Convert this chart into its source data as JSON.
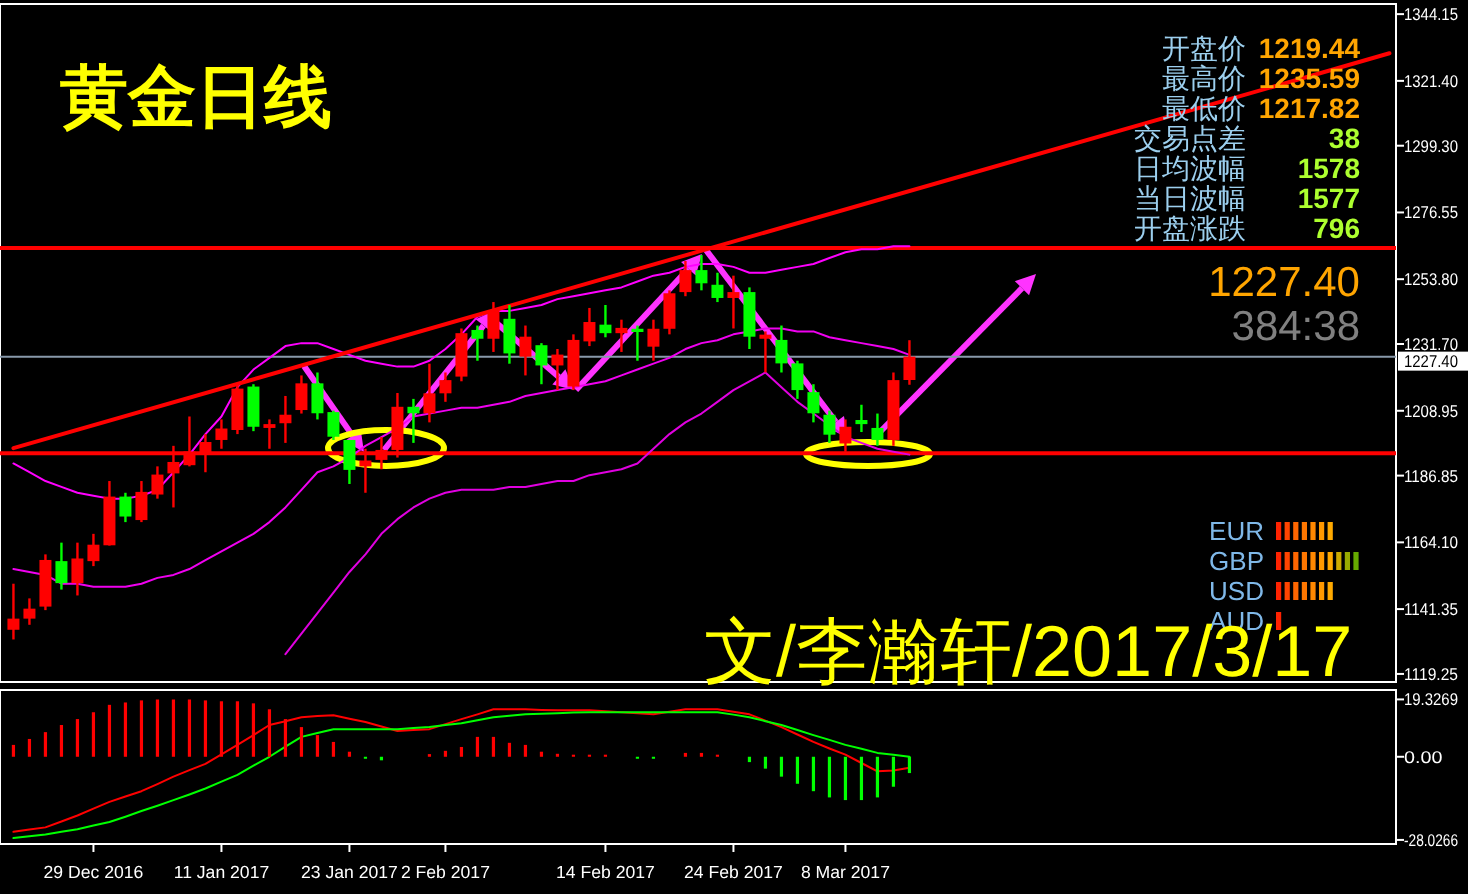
{
  "chart_data": [
    {
      "type": "candlestick",
      "title": "黄金日线",
      "tick_labels": "y",
      "categories": [
        null,
        null,
        null,
        null,
        null,
        null,
        null,
        null,
        null,
        null,
        null,
        null,
        null,
        null,
        null,
        null,
        null,
        null,
        null,
        null,
        null,
        null,
        null,
        null,
        null,
        null,
        null,
        null,
        null,
        null,
        null,
        null,
        null,
        null,
        null,
        null,
        null,
        null,
        null,
        null,
        null,
        null,
        null,
        null,
        null,
        null,
        null,
        null,
        null,
        null,
        null,
        null,
        null,
        null,
        null,
        null,
        null,
        null,
        null,
        null,
        null,
        null,
        null,
        null,
        null,
        null,
        null,
        null,
        null,
        null,
        null,
        null,
        null,
        null,
        null,
        null,
        null,
        null,
        null,
        null,
        null,
        null,
        null,
        null,
        null,
        null,
        null
      ],
      "ohlc": [
        [
          1134.3,
          1150,
          1131,
          1138.1
        ],
        [
          1138.1,
          1145,
          1136,
          1141.5
        ],
        [
          1142.2,
          1160,
          1141,
          1158.1
        ],
        [
          1157.7,
          1164,
          1148,
          1150.2
        ],
        [
          1150.2,
          1164,
          1146,
          1158.6
        ],
        [
          1157.7,
          1167,
          1156,
          1163.3
        ],
        [
          1163.1,
          1185,
          1163,
          1179.7
        ],
        [
          1179.7,
          1181,
          1171,
          1172.9
        ],
        [
          1171.7,
          1185,
          1171,
          1181.3
        ],
        [
          1180.4,
          1190,
          1179,
          1187.2
        ],
        [
          1187.6,
          1197,
          1176,
          1191.5
        ],
        [
          1190.4,
          1207,
          1190,
          1195.1
        ],
        [
          1194.5,
          1201,
          1188,
          1198.3
        ],
        [
          1199,
          1206,
          1196,
          1202.9
        ],
        [
          1202.4,
          1218,
          1201,
          1216.5
        ],
        [
          1217.2,
          1218,
          1202,
          1203.5
        ],
        [
          1203.1,
          1206,
          1196,
          1204.4
        ],
        [
          1204.7,
          1214,
          1198,
          1207.6
        ],
        [
          1209.2,
          1221,
          1208,
          1218.3
        ],
        [
          1218.3,
          1222,
          1206,
          1208.1
        ],
        [
          1208.5,
          1209,
          1199,
          1200.1
        ],
        [
          1199,
          1199,
          1184,
          1188.8
        ],
        [
          1190,
          1196,
          1181,
          1192
        ],
        [
          1192.2,
          1200,
          1189,
          1195.6
        ],
        [
          1195.6,
          1215,
          1193,
          1210.3
        ],
        [
          1210.3,
          1213,
          1198,
          1208.1
        ],
        [
          1208.1,
          1225,
          1205,
          1214.9
        ],
        [
          1214.9,
          1222,
          1212,
          1219.4
        ],
        [
          1220.6,
          1237,
          1219,
          1235.4
        ],
        [
          1236.5,
          1238,
          1226,
          1233.5
        ],
        [
          1233.5,
          1246,
          1229,
          1243.3
        ],
        [
          1240.3,
          1245,
          1225,
          1228.5
        ],
        [
          1227.4,
          1238,
          1221,
          1234.2
        ],
        [
          1231.3,
          1232,
          1218,
          1224.4
        ],
        [
          1224.4,
          1230,
          1216,
          1228.1
        ],
        [
          1217.2,
          1235,
          1216,
          1233.1
        ],
        [
          1232.6,
          1244,
          1231,
          1239.2
        ],
        [
          1238.3,
          1245,
          1234,
          1235.4
        ],
        [
          1235.4,
          1240,
          1229,
          1237.2
        ],
        [
          1236.9,
          1238,
          1226,
          1235.8
        ],
        [
          1230.8,
          1240,
          1226,
          1236.9
        ],
        [
          1236.9,
          1250,
          1235,
          1249
        ],
        [
          1249.4,
          1260,
          1248,
          1256.9
        ],
        [
          1256.9,
          1262,
          1250,
          1252.4
        ],
        [
          1251.9,
          1256,
          1246,
          1247.4
        ],
        [
          1247.4,
          1255,
          1237,
          1249.4
        ],
        [
          1249.4,
          1251,
          1230,
          1234.2
        ],
        [
          1233.5,
          1236,
          1222,
          1234.9
        ],
        [
          1233.1,
          1238,
          1222,
          1225.1
        ],
        [
          1225.1,
          1226,
          1213,
          1216
        ],
        [
          1215.3,
          1218,
          1205,
          1208.1
        ],
        [
          1207.6,
          1209,
          1198,
          1200.8
        ],
        [
          1197.8,
          1206,
          1195,
          1203.5
        ],
        [
          1205.8,
          1211,
          1201.7,
          1204.4
        ],
        [
          1203.1,
          1208,
          1197,
          1199
        ],
        [
          1199,
          1222,
          1197,
          1219.4
        ],
        [
          1219.44,
          1233,
          1217.82,
          1227.4
        ],
        null,
        null,
        null,
        null,
        null,
        null,
        null,
        null,
        null,
        null,
        null,
        null,
        null,
        null,
        null,
        null,
        null,
        null,
        null,
        null,
        null,
        null,
        null,
        null,
        null,
        null,
        null,
        null,
        null,
        null
      ],
      "series": [
        {
          "type": "line",
          "color": "#ff00ff",
          "values": [
            1191,
            1188,
            1185,
            1183,
            1181,
            1180,
            1179,
            1179,
            1180,
            1182,
            1188,
            1194,
            1201,
            1207,
            1217,
            1223,
            1227,
            1231,
            1232,
            1232,
            1230,
            1228,
            1226,
            1225,
            1224,
            1224,
            1226,
            1230,
            1235,
            1241,
            1243,
            1243,
            1244,
            1245,
            1247,
            1248,
            1249,
            1250,
            1251,
            1253,
            1255,
            1256,
            1258,
            1259,
            1259,
            1258,
            1256,
            1256,
            1257,
            1258,
            1259,
            1261,
            1263,
            1264,
            1264,
            1265,
            1265,
            null,
            null,
            null,
            null,
            null,
            null,
            null,
            null,
            null,
            null,
            null,
            null,
            null,
            null,
            null,
            null,
            null,
            null,
            null,
            null,
            null,
            null,
            null,
            null,
            null,
            null,
            null,
            null,
            null,
            null
          ]
        },
        {
          "type": "line",
          "color": "#f000f0",
          "values": [
            1155,
            1154,
            1153,
            1150,
            1150,
            1149,
            1149,
            1149,
            1150,
            1152,
            1153,
            1155,
            1158,
            1161,
            1164,
            1167,
            1171,
            1176,
            1182,
            1188,
            1190,
            1193,
            1197,
            1200,
            1203,
            1207,
            1208,
            1209,
            1210,
            1210,
            1211,
            1212,
            1214,
            1215,
            1216,
            1217,
            1218,
            1219,
            1221,
            1223,
            1225,
            1227,
            1230,
            1232,
            1233,
            1235,
            1236,
            1237,
            1237,
            1236,
            1236,
            1234,
            1233,
            1232,
            1231,
            1230,
            1228,
            null,
            null,
            null,
            null,
            null,
            null,
            null,
            null,
            null,
            null,
            null,
            null,
            null,
            null,
            null,
            null,
            null,
            null,
            null,
            null,
            null,
            null,
            null,
            null,
            null,
            null,
            null,
            null,
            null,
            null
          ]
        },
        {
          "type": "line",
          "color": "#e000e0",
          "values": [
            null,
            null,
            null,
            null,
            null,
            null,
            null,
            null,
            null,
            null,
            null,
            null,
            null,
            null,
            null,
            null,
            null,
            1126,
            1133,
            1140,
            1147,
            1154,
            1160,
            1167,
            1172,
            1176,
            1179,
            1181,
            1182,
            1182,
            1182,
            1183,
            1183,
            1184,
            1185,
            1185,
            1187,
            1188,
            1189,
            1191,
            1196,
            1201,
            1205,
            1208,
            1212,
            1216,
            1219,
            1222,
            1217,
            1212,
            1208,
            1204,
            1200,
            1198,
            1196,
            1195,
            1194,
            null,
            null,
            null,
            null,
            null,
            null,
            null,
            null,
            null,
            null,
            null,
            null,
            null,
            null,
            null,
            null,
            null,
            null,
            null,
            null,
            null,
            null,
            null,
            null,
            null,
            null,
            null,
            null,
            null,
            null
          ]
        },
        {
          "type": "line",
          "color": "#ff0000",
          "values": [
            1196.2,
            null,
            null,
            null,
            null,
            null,
            null,
            null,
            null,
            null,
            null,
            null,
            null,
            null,
            null,
            null,
            null,
            null,
            null,
            null,
            null,
            null,
            null,
            null,
            null,
            null,
            null,
            null,
            null,
            null,
            null,
            null,
            null,
            null,
            null,
            null,
            null,
            null,
            null,
            null,
            null,
            null,
            null,
            null,
            null,
            null,
            null,
            null,
            null,
            null,
            null,
            null,
            null,
            null,
            null,
            null,
            null,
            null,
            null,
            null,
            null,
            null,
            null,
            null,
            null,
            null,
            null,
            null,
            null,
            null,
            null,
            null,
            null,
            null,
            null,
            null,
            null,
            null,
            null,
            null,
            null,
            null,
            null,
            null,
            null,
            null,
            1330.8
          ]
        }
      ],
      "ylim": [
        1116.5,
        1347.6
      ],
      "yticks": [
        {
          "value": 1344.15,
          "label": "1344.15"
        },
        {
          "value": 1321.4,
          "label": "1321.40"
        },
        {
          "value": 1299.3,
          "label": "1299.30"
        },
        {
          "value": 1276.55,
          "label": "1276.55"
        },
        {
          "value": 1253.8,
          "label": "1253.80"
        },
        {
          "value": 1231.7,
          "label": "1231.70"
        },
        {
          "value": 1208.95,
          "label": "1208.95"
        },
        {
          "value": 1186.85,
          "label": "1186.85"
        },
        {
          "value": 1164.1,
          "label": "1164.10"
        },
        {
          "value": 1141.35,
          "label": "1141.35"
        },
        {
          "value": 1119.25,
          "label": "1119.25"
        }
      ],
      "ref_lines": [
        {
          "axis": "y",
          "value": 1194.5,
          "color": "#ff0000"
        },
        {
          "axis": "y",
          "value": 1264.4,
          "color": "#ff0000"
        },
        {
          "axis": "y",
          "value": 1227.4,
          "label": "1227.40",
          "color": "#8899aa"
        }
      ],
      "annotations": [
        "开盘价",
        "1219.44",
        "最高价",
        "1235.59",
        "最低价",
        "1217.82",
        "交易点差",
        "38",
        "日均波幅",
        "1578",
        "当日波幅",
        "1577",
        "开盘涨跌",
        "796",
        "1227.40",
        "384:38",
        "EUR",
        "GBP",
        "USD",
        "AUD",
        "文/李瀚轩/2017/3/17"
      ]
    },
    {
      "type": "bar",
      "categories": [
        null,
        null,
        null,
        null,
        null,
        "29 Dec 2016",
        null,
        null,
        null,
        null,
        null,
        null,
        null,
        "11 Jan 2017",
        null,
        null,
        null,
        null,
        null,
        null,
        null,
        "23 Jan 2017",
        null,
        null,
        null,
        null,
        null,
        "2 Feb 2017",
        null,
        null,
        null,
        null,
        null,
        null,
        null,
        null,
        null,
        "14 Feb 2017",
        null,
        null,
        null,
        null,
        null,
        null,
        null,
        "24 Feb 2017",
        null,
        null,
        null,
        null,
        null,
        null,
        "8 Mar 2017",
        null,
        null,
        null,
        null,
        null,
        null,
        null,
        null,
        null,
        null,
        null,
        null,
        null,
        null,
        null,
        null,
        null,
        null,
        null,
        null,
        null,
        null,
        null,
        null,
        null,
        null,
        null,
        null,
        null,
        null,
        null,
        null,
        null,
        null
      ],
      "series": [
        {
          "type": "bar",
          "color": "#ff0000",
          "values": [
            4.0,
            6.0,
            8.3,
            10.7,
            12.7,
            15.0,
            17.5,
            18.3,
            19.0,
            19.3,
            19.3,
            19.3,
            19.0,
            18.7,
            18.7,
            18.0,
            16.0,
            12.7,
            10.0,
            7.3,
            5.0,
            1.7,
            null,
            null,
            null,
            null,
            0.9,
            2.0,
            3.3,
            6.7,
            6.7,
            4.7,
            4.0,
            1.7,
            1.0,
            0.7,
            0.7,
            0.7,
            null,
            null,
            null,
            null,
            1.3,
            1.3,
            0.7,
            null,
            null,
            null,
            null,
            null,
            null,
            null,
            null,
            null,
            null,
            null,
            null,
            null,
            null,
            null,
            null,
            null,
            null,
            null,
            null,
            null,
            null,
            null,
            null,
            null,
            null,
            null,
            null,
            null,
            null,
            null,
            null,
            null,
            null,
            null,
            null,
            null,
            null,
            null,
            null,
            null,
            null
          ]
        },
        {
          "type": "bar",
          "color": "#00ff00",
          "values": [
            null,
            null,
            null,
            null,
            null,
            null,
            null,
            null,
            null,
            null,
            null,
            null,
            null,
            null,
            null,
            null,
            null,
            null,
            null,
            null,
            null,
            null,
            -0.6,
            -1.2,
            null,
            null,
            null,
            null,
            null,
            null,
            null,
            null,
            null,
            null,
            null,
            null,
            null,
            null,
            null,
            -0.3,
            -0.3,
            null,
            null,
            null,
            null,
            null,
            -1.8,
            -4.0,
            -6.7,
            -9.1,
            -11.6,
            -13.7,
            -14.6,
            -14.6,
            -13.7,
            -10.1,
            -5.5,
            null,
            null,
            null,
            null,
            null,
            null,
            null,
            null,
            null,
            null,
            null,
            null,
            null,
            null,
            null,
            null,
            null,
            null,
            null,
            null,
            null,
            null,
            null,
            null,
            null,
            null,
            null,
            null,
            null,
            null
          ]
        },
        {
          "type": "line",
          "color": "#ff0000",
          "values": [
            -25.3,
            -24.5,
            -23.8,
            -21.8,
            -19.8,
            -17.5,
            -15.2,
            -13.4,
            -11.6,
            -9.2,
            -6.7,
            -4.5,
            -2.4,
            0.8,
            4.0,
            7.3,
            10.7,
            12.0,
            13.3,
            13.7,
            14.0,
            12.8,
            11.7,
            10.2,
            8.7,
            9.0,
            9.3,
            11.0,
            12.7,
            14.3,
            16.0,
            16.0,
            16.0,
            15.8,
            15.7,
            15.7,
            15.7,
            15.3,
            15.0,
            14.7,
            14.3,
            15.2,
            16.0,
            16.0,
            16.0,
            15.2,
            14.3,
            12.2,
            10.0,
            7.5,
            5.0,
            2.8,
            0.7,
            -2.1,
            -4.9,
            -4.6,
            -3.7,
            null,
            null,
            null,
            null,
            null,
            null,
            null,
            null,
            null,
            null,
            null,
            null,
            null,
            null,
            null,
            null,
            null,
            null,
            null,
            null,
            null,
            null,
            null,
            null,
            null,
            null,
            null,
            null,
            null,
            null
          ]
        },
        {
          "type": "line",
          "color": "#00ff00",
          "values": [
            -27.4,
            -26.8,
            -26.2,
            -25.3,
            -24.4,
            -23.2,
            -22.0,
            -20.2,
            -18.3,
            -16.5,
            -14.6,
            -12.7,
            -10.7,
            -8.4,
            -6.1,
            -3.0,
            0,
            3.4,
            6.7,
            8.0,
            9.3,
            9.3,
            9.3,
            9.3,
            9.3,
            9.7,
            10.0,
            10.7,
            11.3,
            12.3,
            13.3,
            13.8,
            14.3,
            14.5,
            14.7,
            14.9,
            15.0,
            15.0,
            15.0,
            15.0,
            15.0,
            15.0,
            15.0,
            15.0,
            15.0,
            14.2,
            13.3,
            12.0,
            10.7,
            9.0,
            7.3,
            5.7,
            4.0,
            2.7,
            1.3,
            0.7,
            0,
            null,
            null,
            null,
            null,
            null,
            null,
            null,
            null,
            null,
            null,
            null,
            null,
            null,
            null,
            null,
            null,
            null,
            null,
            null,
            null,
            null,
            null,
            null,
            null,
            null,
            null,
            null,
            null,
            null,
            null
          ]
        }
      ],
      "ylim": [
        -29.4,
        22.5
      ],
      "yticks": [
        {
          "value": 19.3269,
          "label": "19.3269"
        },
        {
          "value": 0,
          "label": "0.00"
        },
        {
          "value": -28.0266,
          "label": "-28.0266"
        }
      ]
    }
  ]
}
